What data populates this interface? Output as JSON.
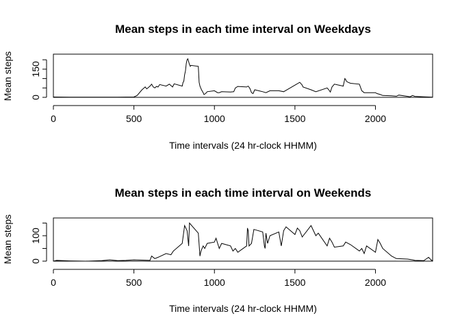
{
  "chart_data": [
    {
      "type": "line",
      "title": "Mean steps in each time interval on Weekdays",
      "xlabel": "Time intervals (24 hr-clock HHMM)",
      "ylabel": "Mean steps",
      "xlim": [
        0,
        2355
      ],
      "ylim": [
        0,
        230
      ],
      "xticks": [
        0,
        500,
        1000,
        1500,
        2000
      ],
      "yticks": [
        0,
        50,
        100,
        150,
        200
      ],
      "ytick_labels": [
        "0",
        "",
        "",
        "150",
        ""
      ],
      "grid": false,
      "series": [
        {
          "x": [
            0,
            100,
            200,
            300,
            400,
            500,
            520,
            550,
            570,
            580,
            600,
            610,
            620,
            630,
            640,
            650,
            660,
            700,
            720,
            740,
            750,
            800,
            805,
            810,
            815,
            820,
            825,
            830,
            835,
            840,
            845,
            850,
            855,
            900,
            905,
            910,
            915,
            920,
            930,
            935,
            945,
            955,
            1000,
            1020,
            1030,
            1045,
            1100,
            1120,
            1130,
            1145,
            1200,
            1210,
            1220,
            1230,
            1240,
            1250,
            1300,
            1320,
            1345,
            1400,
            1430,
            1500,
            1530,
            1545,
            1550,
            1600,
            1630,
            1700,
            1710,
            1720,
            1730,
            1745,
            1800,
            1810,
            1815,
            1820,
            1830,
            1845,
            1900,
            1915,
            1930,
            2000,
            2010,
            2030,
            2045,
            2100,
            2130,
            2145,
            2200,
            2215,
            2230,
            2245,
            2300,
            2330,
            2355
          ],
          "y": [
            2,
            1,
            1,
            1,
            1,
            2,
            10,
            40,
            55,
            45,
            60,
            70,
            55,
            50,
            58,
            55,
            68,
            60,
            70,
            55,
            72,
            60,
            80,
            85,
            120,
            140,
            180,
            200,
            205,
            190,
            175,
            165,
            170,
            165,
            80,
            60,
            50,
            40,
            25,
            15,
            20,
            30,
            35,
            25,
            25,
            30,
            28,
            30,
            50,
            58,
            55,
            60,
            48,
            25,
            20,
            40,
            30,
            25,
            35,
            35,
            30,
            65,
            80,
            65,
            55,
            40,
            30,
            50,
            40,
            28,
            55,
            70,
            60,
            100,
            95,
            85,
            80,
            75,
            70,
            35,
            25,
            25,
            20,
            15,
            10,
            8,
            6,
            12,
            5,
            3,
            10,
            5,
            3,
            2,
            1
          ]
        }
      ]
    },
    {
      "type": "line",
      "title": "Mean steps in each time interval on Weekends",
      "xlabel": "Time intervals (24 hr-clock HHMM)",
      "ylabel": "Mean steps",
      "xlim": [
        0,
        2355
      ],
      "ylim": [
        0,
        170
      ],
      "xticks": [
        0,
        500,
        1000,
        1500,
        2000
      ],
      "yticks": [
        0,
        50,
        100,
        150
      ],
      "ytick_labels": [
        "0",
        "",
        "100",
        ""
      ],
      "grid": false,
      "series": [
        {
          "x": [
            0,
            20,
            100,
            200,
            300,
            350,
            400,
            450,
            500,
            550,
            600,
            610,
            630,
            650,
            700,
            730,
            745,
            800,
            815,
            830,
            840,
            845,
            900,
            910,
            915,
            920,
            930,
            940,
            955,
            1000,
            1010,
            1030,
            1045,
            1100,
            1115,
            1130,
            1145,
            1200,
            1205,
            1210,
            1215,
            1230,
            1245,
            1300,
            1310,
            1315,
            1320,
            1330,
            1345,
            1400,
            1415,
            1430,
            1445,
            1500,
            1515,
            1530,
            1545,
            1600,
            1615,
            1630,
            1645,
            1700,
            1715,
            1730,
            1745,
            1800,
            1815,
            1830,
            1845,
            1900,
            1915,
            1930,
            1945,
            2000,
            2015,
            2030,
            2045,
            2100,
            2130,
            2200,
            2230,
            2245,
            2300,
            2330,
            2345,
            2355
          ],
          "y": [
            0,
            3,
            1,
            0,
            2,
            5,
            2,
            3,
            5,
            4,
            3,
            20,
            10,
            15,
            30,
            25,
            40,
            70,
            140,
            120,
            60,
            150,
            110,
            20,
            35,
            45,
            60,
            50,
            70,
            75,
            90,
            50,
            70,
            60,
            40,
            50,
            35,
            60,
            130,
            120,
            60,
            70,
            125,
            115,
            60,
            50,
            110,
            70,
            100,
            115,
            60,
            120,
            135,
            105,
            130,
            120,
            95,
            140,
            120,
            100,
            110,
            60,
            90,
            75,
            55,
            60,
            75,
            70,
            65,
            40,
            50,
            30,
            60,
            35,
            85,
            70,
            50,
            20,
            10,
            8,
            5,
            3,
            2,
            15,
            5,
            1
          ]
        }
      ]
    }
  ]
}
